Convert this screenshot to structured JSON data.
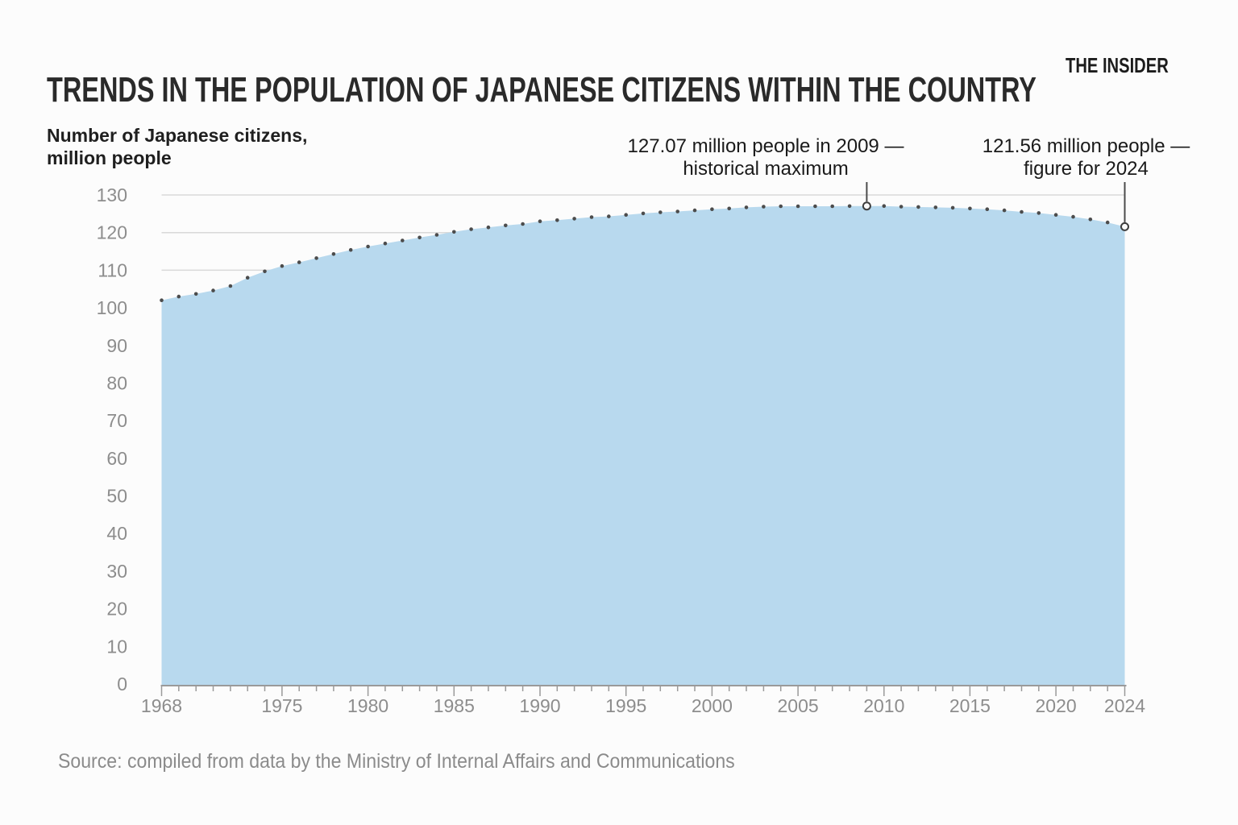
{
  "header": {
    "title": "TRENDS IN THE POPULATION OF JAPANESE CITIZENS WITHIN THE COUNTRY",
    "brand": "THE INSIDER"
  },
  "axis_title": {
    "line1": "Number of Japanese citizens,",
    "line2": "million people"
  },
  "annotations": [
    {
      "line1": "127.07 million people in 2009 —",
      "line2": "historical maximum"
    },
    {
      "line1": "121.56 million people —",
      "line2": "figure for 2024"
    }
  ],
  "source": "Source: compiled from data by the Ministry of Internal Affairs and Communications",
  "chart_data": {
    "type": "area",
    "title": "Trends in the population of Japanese citizens within the country",
    "ylabel": "Number of Japanese citizens, million people",
    "xlabel": "",
    "x": [
      1968,
      1969,
      1970,
      1971,
      1972,
      1973,
      1974,
      1975,
      1976,
      1977,
      1978,
      1979,
      1980,
      1981,
      1982,
      1983,
      1984,
      1985,
      1986,
      1987,
      1988,
      1989,
      1990,
      1991,
      1992,
      1993,
      1994,
      1995,
      1996,
      1997,
      1998,
      1999,
      2000,
      2001,
      2002,
      2003,
      2004,
      2005,
      2006,
      2007,
      2008,
      2009,
      2010,
      2011,
      2012,
      2013,
      2014,
      2015,
      2016,
      2017,
      2018,
      2019,
      2020,
      2021,
      2022,
      2023,
      2024
    ],
    "values": [
      102.0,
      103.0,
      103.7,
      104.6,
      105.8,
      108.0,
      109.7,
      111.1,
      112.1,
      113.2,
      114.3,
      115.4,
      116.3,
      117.1,
      117.9,
      118.7,
      119.4,
      120.2,
      120.9,
      121.4,
      121.9,
      122.3,
      123.0,
      123.3,
      123.7,
      124.1,
      124.3,
      124.7,
      125.1,
      125.4,
      125.6,
      125.9,
      126.2,
      126.4,
      126.7,
      126.9,
      127.0,
      127.0,
      127.0,
      127.0,
      127.05,
      127.07,
      127.06,
      126.9,
      126.8,
      126.7,
      126.6,
      126.4,
      126.2,
      125.9,
      125.5,
      125.2,
      124.7,
      124.2,
      123.5,
      122.7,
      121.56
    ],
    "ylim": [
      0,
      130
    ],
    "yticks": [
      0,
      10,
      20,
      30,
      40,
      50,
      60,
      70,
      80,
      90,
      100,
      110,
      120,
      130
    ],
    "xticks": [
      1968,
      1975,
      1980,
      1985,
      1990,
      1995,
      2000,
      2005,
      2010,
      2015,
      2020,
      2024
    ],
    "grid_y": [
      110,
      120,
      130
    ],
    "markers": [
      {
        "x": 2009,
        "y": 127.07,
        "label": "127.07 million people in 2009 — historical maximum"
      },
      {
        "x": 2024,
        "y": 121.56,
        "label": "121.56 million people — figure for 2024"
      }
    ],
    "legend": null,
    "grid": "horizontal, above-area only",
    "colors": {
      "area": "#b8d9ee",
      "dot": "#4c4c4c",
      "grid": "#d9d9d9",
      "axis": "#9a9a9a",
      "tick_label": "#8d8d8d",
      "leader": "#4b4b4b",
      "marker_ring": "#3e3e3e",
      "background": "#fcfcfc"
    }
  }
}
